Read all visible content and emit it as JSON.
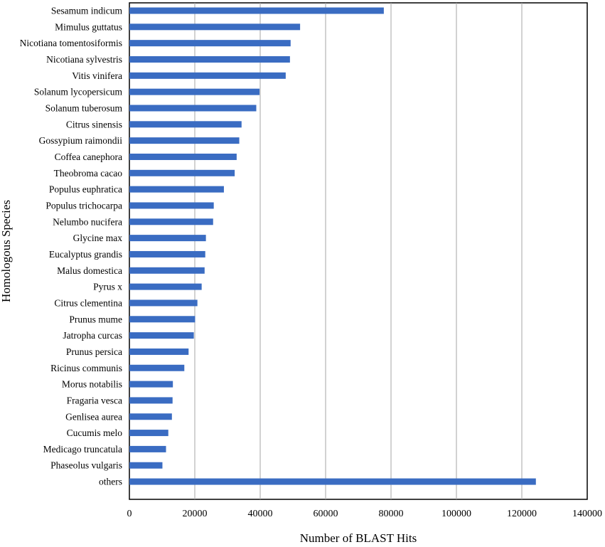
{
  "chart_data": {
    "type": "bar",
    "orientation": "horizontal",
    "xlabel": "Number of BLAST Hits",
    "ylabel": "Homologous Species",
    "xlim": [
      0,
      140000
    ],
    "xticks": [
      0,
      20000,
      40000,
      60000,
      80000,
      100000,
      120000,
      140000
    ],
    "grid": "vertical",
    "bar_color": "#3a6cc2",
    "categories": [
      "Sesamum indicum",
      "Mimulus guttatus",
      "Nicotiana tomentosiformis",
      "Nicotiana sylvestris",
      "Vitis vinifera",
      "Solanum lycopersicum",
      "Solanum tuberosum",
      "Citrus sinensis",
      "Gossypium raimondii",
      "Coffea canephora",
      "Theobroma cacao",
      "Populus euphratica",
      "Populus trichocarpa",
      "Nelumbo nucifera",
      "Glycine max",
      "Eucalyptus grandis",
      "Malus domestica",
      "Pyrus x",
      "Citrus clementina",
      "Prunus mume",
      "Jatropha curcas",
      "Prunus persica",
      "Ricinus communis",
      "Morus notabilis",
      "Fragaria vesca",
      "Genlisea aurea",
      "Cucumis melo",
      "Medicago truncatula",
      "Phaseolus vulgaris",
      "others"
    ],
    "values": [
      77800,
      52200,
      49300,
      49100,
      47800,
      39800,
      38800,
      34300,
      33600,
      32800,
      32200,
      28900,
      25800,
      25600,
      23400,
      23200,
      23000,
      22100,
      20800,
      20100,
      19700,
      18100,
      16800,
      13300,
      13200,
      13000,
      11900,
      11200,
      10100,
      124300
    ]
  }
}
